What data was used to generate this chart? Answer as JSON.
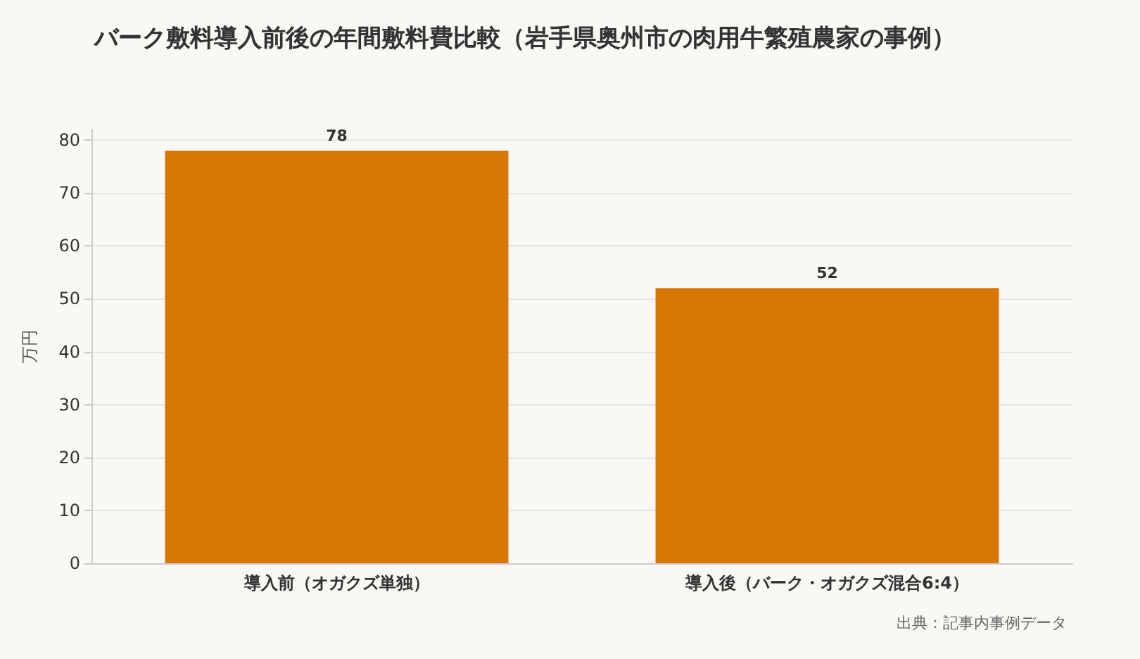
{
  "chart_data": {
    "type": "bar",
    "title": "バーク敷料導入前後の年間敷料費比較（岩手県奥州市の肉用牛繁殖農家の事例）",
    "ylabel": "万円",
    "categories": [
      "導入前（オガクズ単独）",
      "導入後（バーク・オガクズ混合6:4）"
    ],
    "values": [
      78,
      52
    ],
    "color": "#d97706",
    "ylim": [
      0,
      82
    ],
    "yticks": [
      0,
      10,
      20,
      30,
      40,
      50,
      60,
      70,
      80
    ],
    "grid": "y",
    "data_labels": true,
    "annotations": [
      "出典：記事内事例データ"
    ]
  }
}
